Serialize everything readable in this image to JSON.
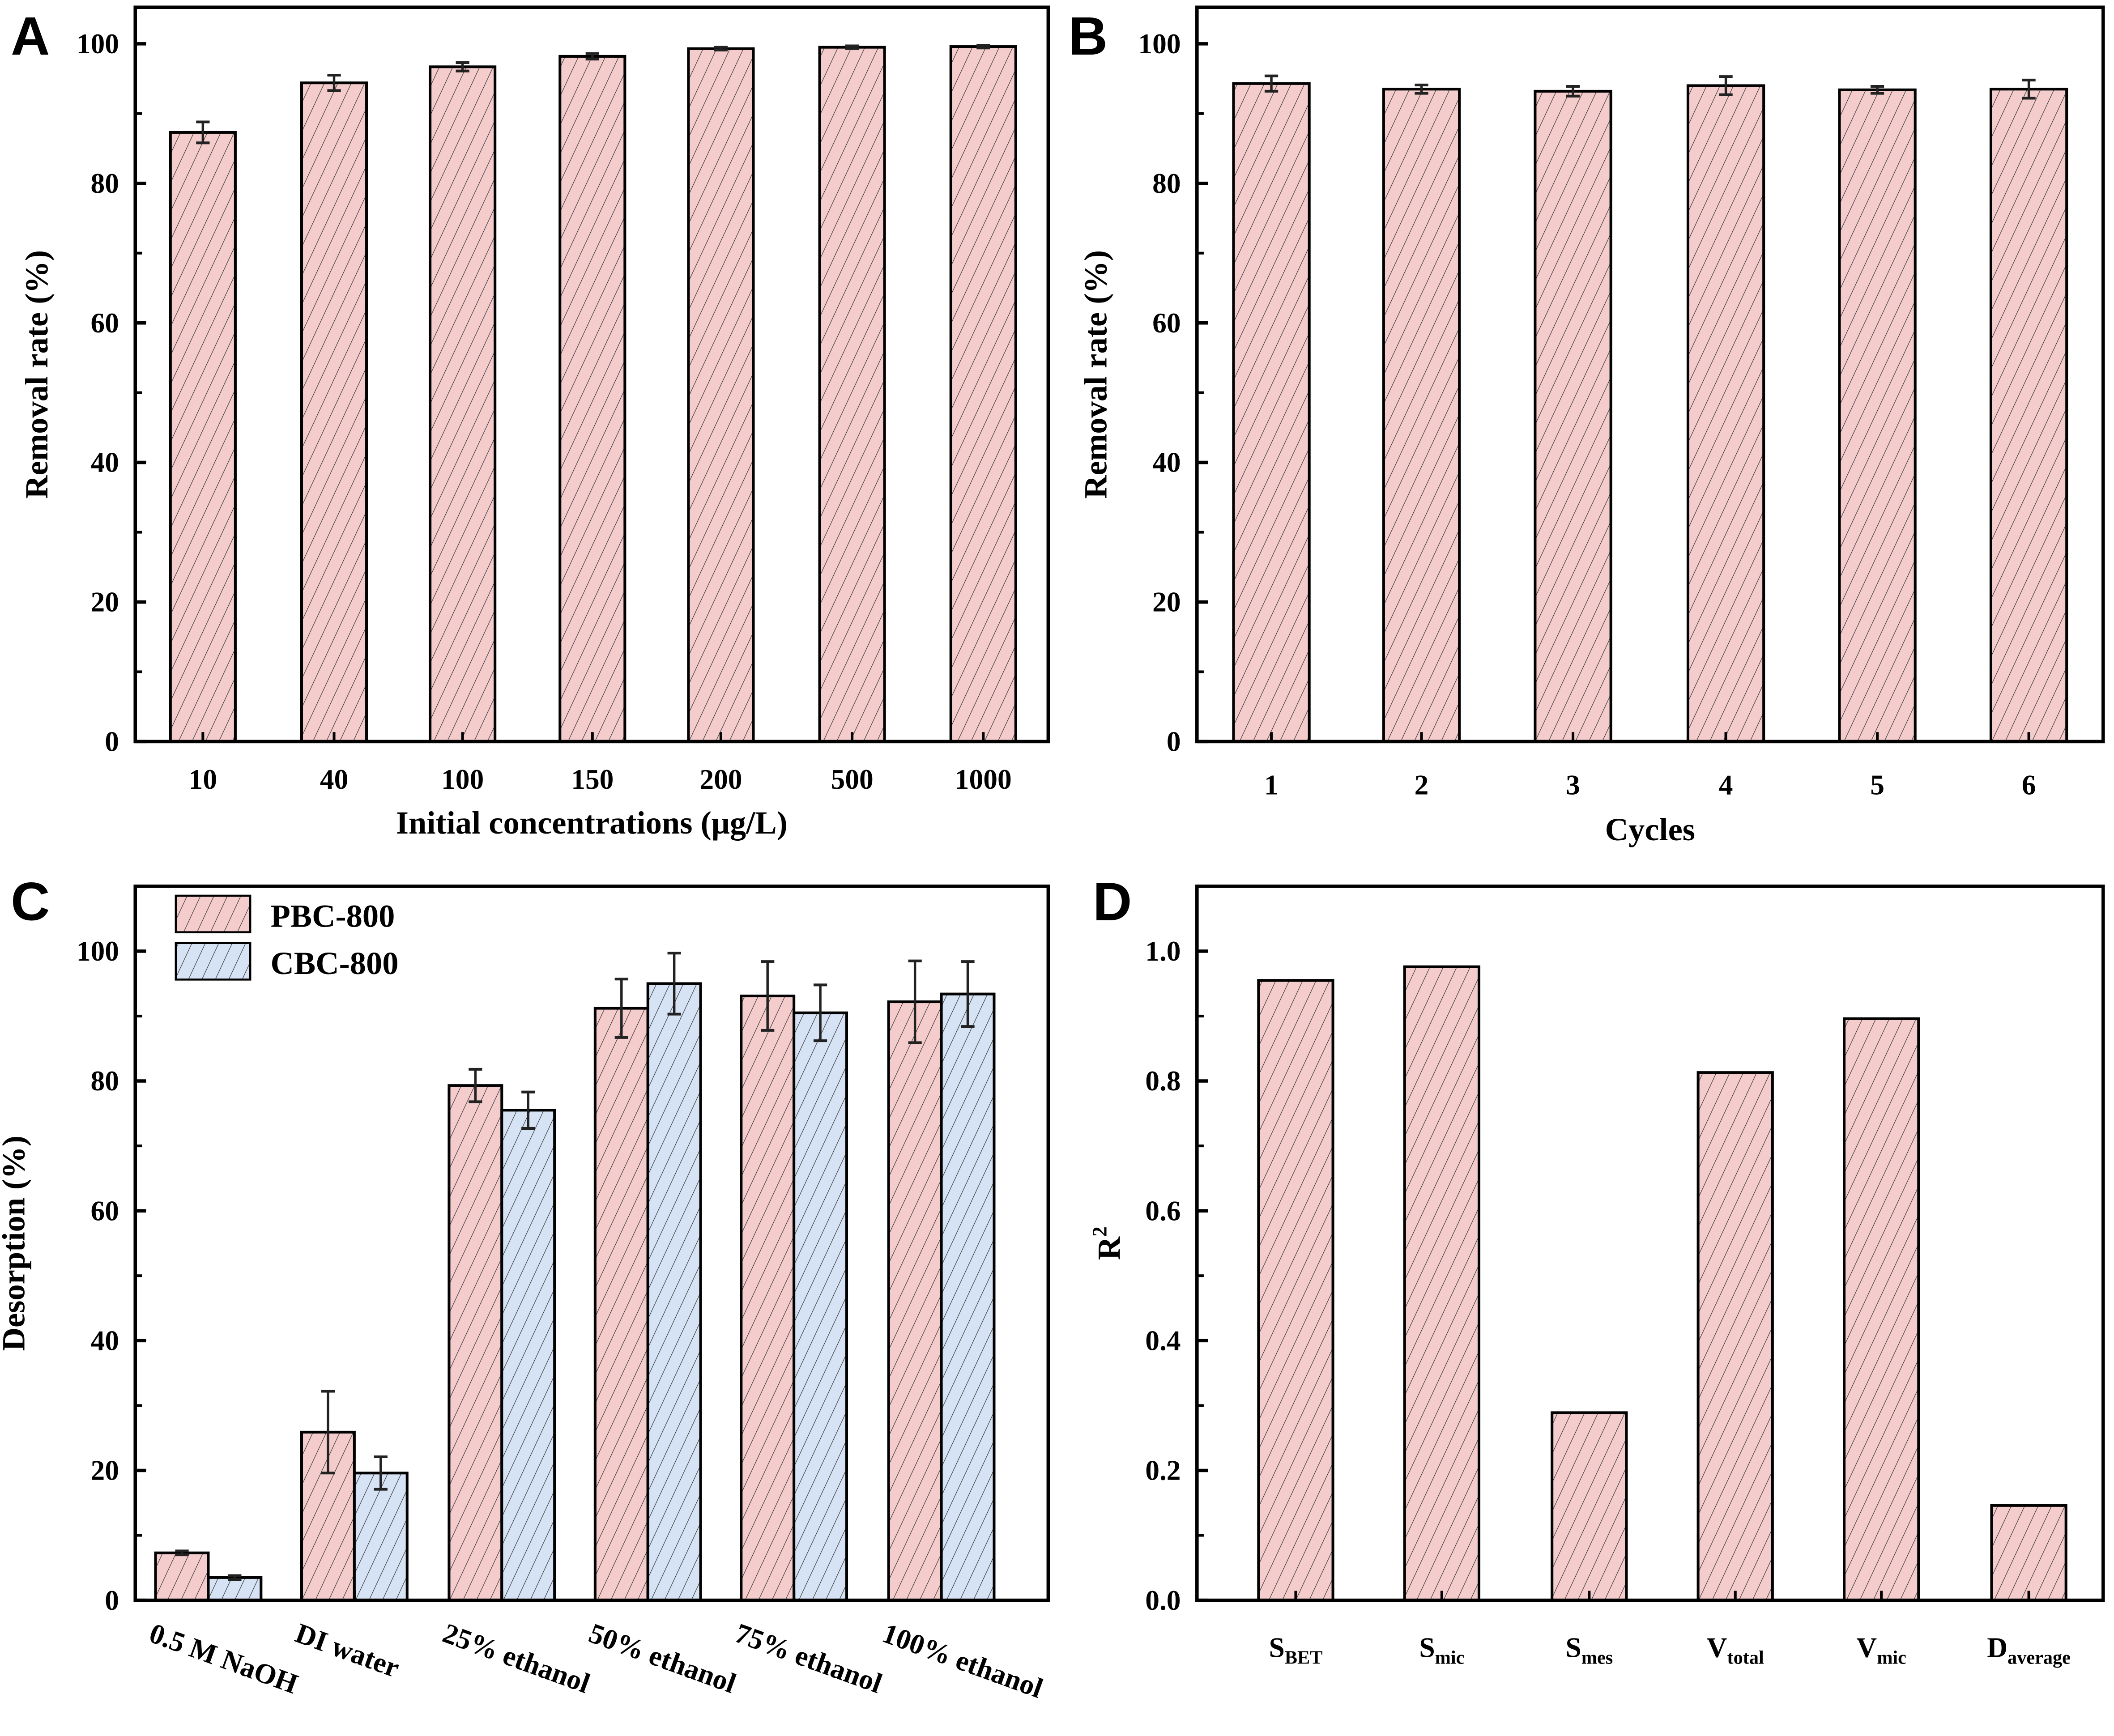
{
  "colors": {
    "pbc": "#f5cccc",
    "cbc": "#d6e3f5",
    "hatch": "#333333",
    "axis": "#000000"
  },
  "chart_data": [
    {
      "panel": "A",
      "type": "bar",
      "categories": [
        "10",
        "40",
        "100",
        "150",
        "200",
        "500",
        "1000"
      ],
      "values": [
        87.3,
        94.4,
        96.7,
        98.2,
        99.3,
        99.5,
        99.6
      ],
      "errors": [
        1.5,
        1.1,
        0.6,
        0.4,
        0.2,
        0.2,
        0.2
      ],
      "xlabel": "Initial concentrations (μg/L)",
      "ylabel": "Removal rate (%)",
      "ylim": [
        0,
        105
      ],
      "yticks": [
        0,
        20,
        40,
        60,
        80,
        100
      ],
      "grid": false
    },
    {
      "panel": "B",
      "type": "bar",
      "categories": [
        "1",
        "2",
        "3",
        "4",
        "5",
        "6"
      ],
      "values": [
        94.3,
        93.5,
        93.2,
        94.0,
        93.4,
        93.5
      ],
      "errors": [
        1.1,
        0.6,
        0.7,
        1.3,
        0.5,
        1.3
      ],
      "xlabel": "Cycles",
      "ylabel": "Removal rate (%)",
      "ylim": [
        0,
        105
      ],
      "yticks": [
        0,
        20,
        40,
        60,
        80,
        100
      ],
      "grid": false
    },
    {
      "panel": "C",
      "type": "bar",
      "categories": [
        "0.5 M NaOH",
        "DI water",
        "25% ethanol",
        "50% ethanol",
        "75% ethanol",
        "100% ethanol"
      ],
      "series": [
        {
          "name": "PBC-800",
          "values": [
            7.3,
            25.9,
            79.3,
            91.2,
            93.1,
            92.2
          ],
          "errors": [
            0.3,
            6.3,
            2.5,
            4.5,
            5.3,
            6.3
          ]
        },
        {
          "name": "CBC-800",
          "values": [
            3.5,
            19.6,
            75.5,
            95.0,
            90.5,
            93.4
          ],
          "errors": [
            0.3,
            2.5,
            2.8,
            4.7,
            4.3,
            5.0
          ]
        }
      ],
      "xlabel": "",
      "ylabel": "Desorption (%)",
      "ylim": [
        0,
        110
      ],
      "yticks": [
        0,
        20,
        40,
        60,
        80,
        100
      ],
      "legend": "top-left",
      "grid": false
    },
    {
      "panel": "D",
      "type": "bar",
      "categories": [
        {
          "base": "S",
          "sub": "BET"
        },
        {
          "base": "S",
          "sub": "mic"
        },
        {
          "base": "S",
          "sub": "mes"
        },
        {
          "base": "V",
          "sub": "total"
        },
        {
          "base": "V",
          "sub": "mic"
        },
        {
          "base": "D",
          "sub": "average"
        }
      ],
      "values": [
        0.955,
        0.976,
        0.289,
        0.813,
        0.896,
        0.146
      ],
      "xlabel": "",
      "ylabel": {
        "base": "R",
        "sup": "2"
      },
      "ylim": [
        0,
        1.1
      ],
      "yticks": [
        "0.0",
        "0.2",
        "0.4",
        "0.6",
        "0.8",
        "1.0"
      ],
      "grid": false
    }
  ]
}
